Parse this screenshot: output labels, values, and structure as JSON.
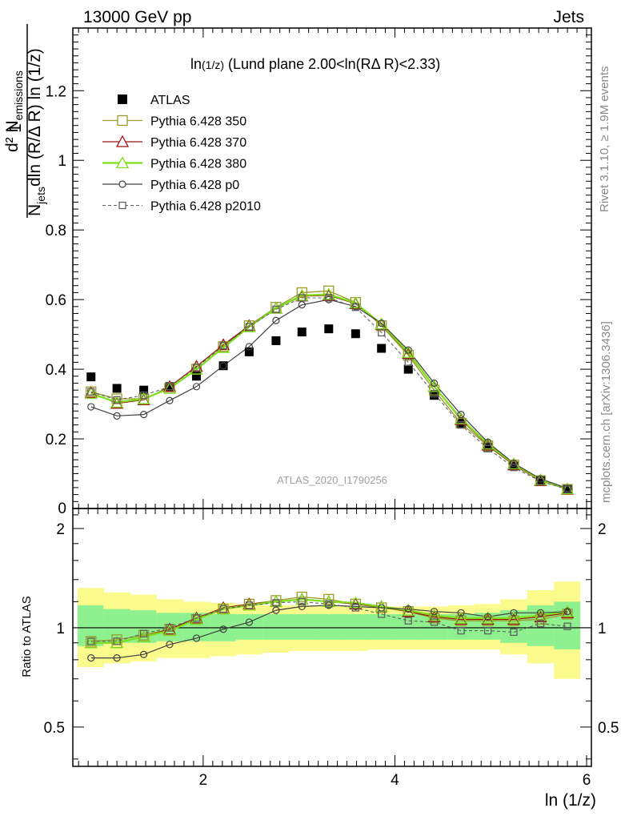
{
  "header": {
    "left": "13000 GeV pp",
    "right": "Jets"
  },
  "side": {
    "rivet": "Rivet 3.1.10, ≥ 1.9M events",
    "mcplots": "mcplots.cern.ch [arXiv:1306.3436]"
  },
  "watermark": "ATLAS_2020_I1790256",
  "plot_title": {
    "prefix": "ln",
    "sub": "(1/z)",
    "rest": " (Lund plane 2.00<ln(RΔ R)<2.33)"
  },
  "ylabel_main": {
    "num": "d² N",
    "num_sub": "emissions",
    "den_a": "N",
    "den_sub": "jets",
    "den_b": "dln (R/Δ R) ln (1/z)",
    "one": "1"
  },
  "ylabel_ratio": "Ratio to ATLAS",
  "xlabel": "ln (1/z)",
  "colors": {
    "p350": "#9a9a2a",
    "p370": "#9c1212",
    "p380": "#7ee01a",
    "p0": "#404040",
    "p2010": "#606060",
    "band_outer": "#fbfa8c",
    "band_inner": "#8ef08e"
  },
  "chart_data": [
    {
      "type": "line",
      "panel": "main",
      "xlim": [
        0.64,
        6.05
      ],
      "ylim": [
        0,
        1.38
      ],
      "x_ticks": [
        "2",
        "4",
        "6"
      ],
      "y_ticks": [
        "0.2",
        "0.4",
        "0.6",
        "0.8",
        "1",
        "1.2"
      ],
      "y_tick_zero": "0",
      "x": [
        0.83,
        1.1,
        1.38,
        1.65,
        1.93,
        2.21,
        2.48,
        2.76,
        3.03,
        3.31,
        3.59,
        3.86,
        4.14,
        4.41,
        4.69,
        4.97,
        5.24,
        5.52,
        5.8
      ],
      "series": [
        {
          "name": "ATLAS",
          "key": "atlas",
          "values": [
            0.378,
            0.345,
            0.34,
            0.35,
            0.38,
            0.41,
            0.45,
            0.482,
            0.507,
            0.516,
            0.502,
            0.46,
            0.4,
            0.325,
            0.245,
            0.175,
            0.122,
            0.08,
            0.055
          ]
        },
        {
          "name": "Pythia 6.428 350",
          "key": "p350",
          "values": [
            0.335,
            0.315,
            0.315,
            0.345,
            0.4,
            0.465,
            0.525,
            0.578,
            0.62,
            0.625,
            0.592,
            0.525,
            0.44,
            0.34,
            0.245,
            0.18,
            0.125,
            0.08,
            0.055
          ]
        },
        {
          "name": "Pythia 6.428 370",
          "key": "p370",
          "values": [
            0.333,
            0.302,
            0.312,
            0.35,
            0.408,
            0.47,
            0.525,
            0.575,
            0.61,
            0.612,
            0.588,
            0.528,
            0.445,
            0.35,
            0.255,
            0.182,
            0.125,
            0.08,
            0.055
          ]
        },
        {
          "name": "Pythia 6.428 380",
          "key": "p380",
          "values": [
            0.33,
            0.305,
            0.315,
            0.345,
            0.4,
            0.462,
            0.522,
            0.575,
            0.612,
            0.615,
            0.59,
            0.53,
            0.448,
            0.35,
            0.258,
            0.185,
            0.128,
            0.082,
            0.056
          ]
        },
        {
          "name": "Pythia 6.428 p0",
          "key": "p0",
          "values": [
            0.292,
            0.266,
            0.27,
            0.31,
            0.35,
            0.41,
            0.465,
            0.54,
            0.585,
            0.6,
            0.58,
            0.532,
            0.455,
            0.36,
            0.27,
            0.19,
            0.13,
            0.085,
            0.058
          ]
        },
        {
          "name": "Pythia 6.428 p2010",
          "key": "p2010",
          "values": [
            0.335,
            0.312,
            0.325,
            0.35,
            0.405,
            0.468,
            0.522,
            0.572,
            0.605,
            0.605,
            0.578,
            0.505,
            0.42,
            0.33,
            0.24,
            0.172,
            0.118,
            0.078,
            0.055
          ]
        }
      ]
    },
    {
      "type": "line",
      "panel": "ratio",
      "xlim": [
        0.64,
        6.05
      ],
      "ylim": [
        0.38,
        2.3
      ],
      "y_scale": "log",
      "x_ticks": [
        "2",
        "4",
        "6"
      ],
      "y_ticks": [
        "0.5",
        "1",
        "2"
      ],
      "reference_line": 1,
      "bins": [
        0.69,
        0.96,
        1.24,
        1.51,
        1.79,
        2.07,
        2.34,
        2.62,
        2.89,
        3.17,
        3.45,
        3.72,
        4.0,
        4.27,
        4.55,
        4.83,
        5.1,
        5.38,
        5.66,
        5.93
      ],
      "band_outer_lo": [
        0.76,
        0.78,
        0.79,
        0.81,
        0.81,
        0.82,
        0.83,
        0.84,
        0.85,
        0.85,
        0.85,
        0.86,
        0.86,
        0.86,
        0.86,
        0.86,
        0.83,
        0.78,
        0.7
      ],
      "band_outer_hi": [
        1.32,
        1.28,
        1.26,
        1.22,
        1.2,
        1.19,
        1.18,
        1.17,
        1.17,
        1.17,
        1.16,
        1.16,
        1.16,
        1.16,
        1.17,
        1.18,
        1.22,
        1.3,
        1.38
      ],
      "band_inner_lo": [
        0.88,
        0.9,
        0.9,
        0.91,
        0.91,
        0.91,
        0.92,
        0.92,
        0.92,
        0.92,
        0.92,
        0.92,
        0.92,
        0.92,
        0.92,
        0.92,
        0.9,
        0.88,
        0.86
      ],
      "band_inner_hi": [
        1.17,
        1.14,
        1.13,
        1.11,
        1.11,
        1.1,
        1.1,
        1.1,
        1.1,
        1.1,
        1.1,
        1.1,
        1.1,
        1.1,
        1.1,
        1.11,
        1.13,
        1.17,
        1.2
      ],
      "x": [
        0.83,
        1.1,
        1.38,
        1.65,
        1.93,
        2.21,
        2.48,
        2.76,
        3.03,
        3.31,
        3.59,
        3.86,
        4.14,
        4.41,
        4.69,
        4.97,
        5.24,
        5.52,
        5.8
      ],
      "series": [
        {
          "name": "Pythia 6.428 350",
          "key": "p350",
          "values": [
            0.91,
            0.92,
            0.95,
            0.99,
            1.06,
            1.14,
            1.18,
            1.21,
            1.24,
            1.22,
            1.18,
            1.15,
            1.12,
            1.07,
            1.05,
            1.05,
            1.05,
            1.06,
            1.1
          ]
        },
        {
          "name": "Pythia 6.428 370",
          "key": "p370",
          "values": [
            0.9,
            0.9,
            0.94,
            0.99,
            1.07,
            1.15,
            1.18,
            1.2,
            1.22,
            1.2,
            1.18,
            1.16,
            1.12,
            1.08,
            1.06,
            1.06,
            1.06,
            1.08,
            1.11
          ]
        },
        {
          "name": "Pythia 6.428 380",
          "key": "p380",
          "values": [
            0.9,
            0.9,
            0.94,
            0.98,
            1.06,
            1.14,
            1.17,
            1.2,
            1.22,
            1.2,
            1.19,
            1.16,
            1.13,
            1.09,
            1.07,
            1.07,
            1.07,
            1.09,
            1.12
          ]
        },
        {
          "name": "Pythia 6.428 p0",
          "key": "p0",
          "values": [
            0.81,
            0.81,
            0.83,
            0.89,
            0.93,
            0.99,
            1.04,
            1.13,
            1.16,
            1.17,
            1.16,
            1.15,
            1.14,
            1.12,
            1.11,
            1.08,
            1.11,
            1.11,
            1.12
          ]
        },
        {
          "name": "Pythia 6.428 p2010",
          "key": "p2010",
          "values": [
            0.91,
            0.91,
            0.96,
            1.0,
            1.07,
            1.14,
            1.17,
            1.19,
            1.2,
            1.18,
            1.15,
            1.1,
            1.05,
            1.04,
            0.98,
            0.98,
            0.97,
            1.03,
            1.01
          ]
        }
      ]
    }
  ]
}
